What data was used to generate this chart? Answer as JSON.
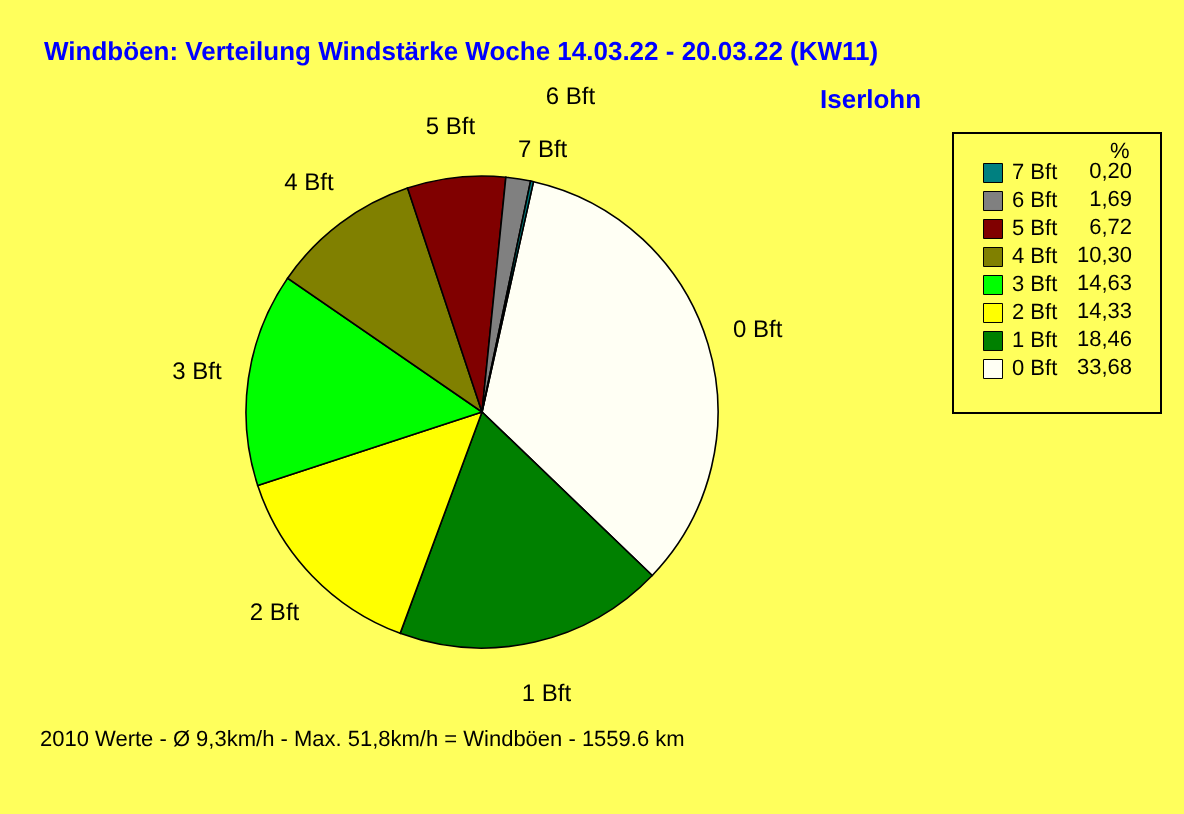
{
  "chart_data": {
    "type": "pie",
    "title": "Windböen: Verteilung Windstärke Woche 14.03.22 - 20.03.22 (KW11)",
    "subtitle": "Iserlohn",
    "legend_title": "%",
    "categories": [
      "0 Bft",
      "1 Bft",
      "2 Bft",
      "3 Bft",
      "4 Bft",
      "5 Bft",
      "6 Bft",
      "7 Bft"
    ],
    "values": [
      33.68,
      18.46,
      14.33,
      14.63,
      10.3,
      6.72,
      1.69,
      0.2
    ],
    "value_labels": [
      "33,68",
      "18,46",
      "14,33",
      "14,63",
      "10,30",
      "6,72",
      "1,69",
      "0,20"
    ],
    "colors": [
      "#fffff4",
      "#008000",
      "#ffff00",
      "#00ff00",
      "#808000",
      "#800000",
      "#808080",
      "#008080"
    ],
    "legend": "top right",
    "annotations": [
      "2010 Werte - Ø 9,3km/h - Max. 51,8km/h = Windböen - 1559.6 km"
    ]
  }
}
